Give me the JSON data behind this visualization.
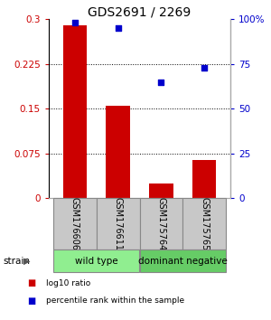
{
  "title": "GDS2691 / 2269",
  "categories": [
    "GSM176606",
    "GSM176611",
    "GSM175764",
    "GSM175765"
  ],
  "bar_values": [
    0.29,
    0.155,
    0.025,
    0.065
  ],
  "scatter_values": [
    98,
    95,
    65,
    73
  ],
  "bar_color": "#cc0000",
  "scatter_color": "#0000cc",
  "ylim_left": [
    0,
    0.3
  ],
  "ylim_right": [
    0,
    100
  ],
  "yticks_left": [
    0,
    0.075,
    0.15,
    0.225,
    0.3
  ],
  "yticks_right": [
    0,
    25,
    50,
    75,
    100
  ],
  "yticklabels_left": [
    "0",
    "0.075",
    "0.15",
    "0.225",
    "0.3"
  ],
  "yticklabels_right": [
    "0",
    "25",
    "50",
    "75",
    "100%"
  ],
  "groups": [
    {
      "label": "wild type",
      "indices": [
        0,
        1
      ],
      "color": "#90ee90"
    },
    {
      "label": "dominant negative",
      "indices": [
        2,
        3
      ],
      "color": "#66cc66"
    }
  ],
  "legend_items": [
    {
      "label": "log10 ratio",
      "color": "#cc0000"
    },
    {
      "label": "percentile rank within the sample",
      "color": "#0000cc"
    }
  ],
  "strain_label": "strain",
  "label_box_color": "#c8c8c8",
  "label_box_edge": "#888888",
  "bar_width": 0.55
}
